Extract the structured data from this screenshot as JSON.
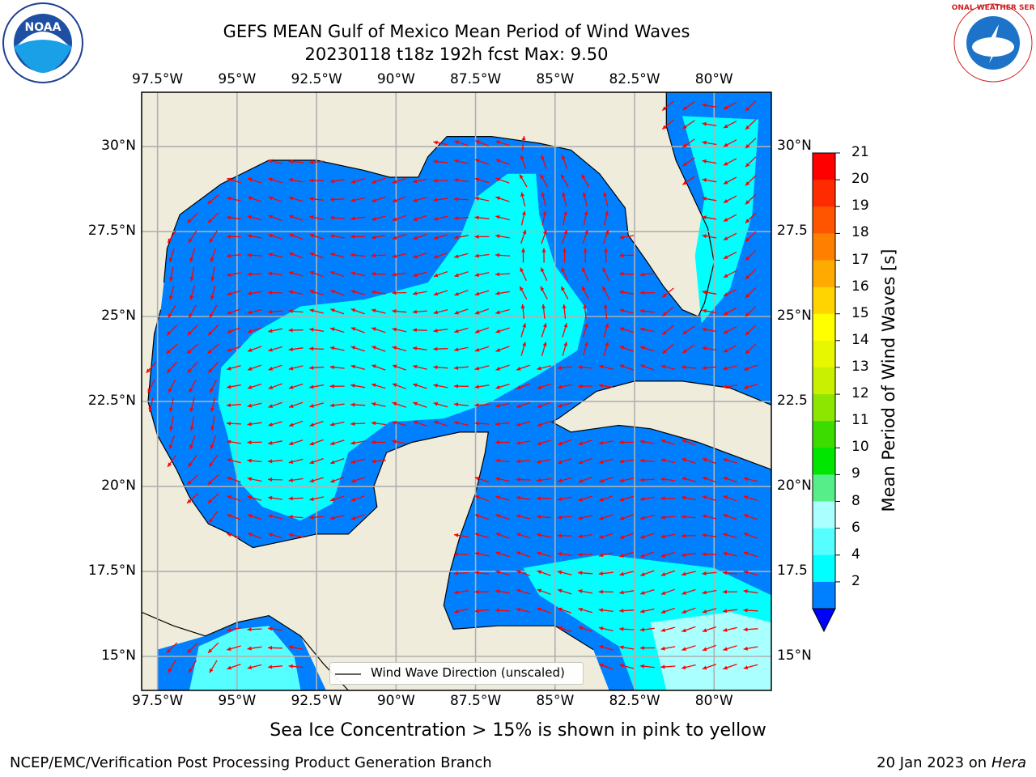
{
  "title": {
    "line1": "GEFS MEAN Gulf of Mexico Mean Period of Wind Waves",
    "line2": "20230118 t18z 192h fcst   Max: 9.50"
  },
  "logos": {
    "left": "NOAA",
    "right_ring": "NATIONAL WEATHER SERVICE"
  },
  "map": {
    "lon_ticks": [
      "97.5°W",
      "95°W",
      "92.5°W",
      "90°W",
      "87.5°W",
      "85°W",
      "82.5°W",
      "80°W"
    ],
    "lat_ticks": [
      "30°N",
      "27.5°N",
      "25°N",
      "22.5°N",
      "20°N",
      "17.5°N",
      "15°N"
    ],
    "lat_ticks_right": [
      "30°N",
      "27.5",
      "25°N",
      "22.5",
      "20°N",
      "17.5",
      "15°N"
    ],
    "lon_range": [
      -98,
      -78.2
    ],
    "lat_range": [
      14,
      31.6
    ],
    "land_color": "#efecdc",
    "coast_color": "#000000",
    "arrow_color": "#ff0000",
    "grid_color": "#b0b0b0"
  },
  "legend": {
    "label": "Wind Wave Direction (unscaled)"
  },
  "colorbar": {
    "label": "Mean Period of Wind Waves [s]",
    "ticks": [
      "21",
      "20",
      "19",
      "18",
      "17",
      "16",
      "15",
      "14",
      "13",
      "12",
      "11",
      "10",
      "9",
      "8",
      "6",
      "4",
      "2"
    ],
    "colors": [
      "#ff0000",
      "#ff2b00",
      "#ff5500",
      "#ff8000",
      "#ffaa00",
      "#ffd400",
      "#ffff00",
      "#e6f700",
      "#c8f000",
      "#8ce600",
      "#3cdc00",
      "#00e600",
      "#55ee88",
      "#aaffff",
      "#55ffff",
      "#00ffff",
      "#0080ff"
    ],
    "extend_color": "#0000ff"
  },
  "footer": {
    "note": "Sea Ice Concentration > 15% is shown in pink to yellow",
    "left": "NCEP/EMC/Verification Post Processing Product Generation Branch",
    "date": "20 Jan 2023 on",
    "machine": "Hera"
  }
}
